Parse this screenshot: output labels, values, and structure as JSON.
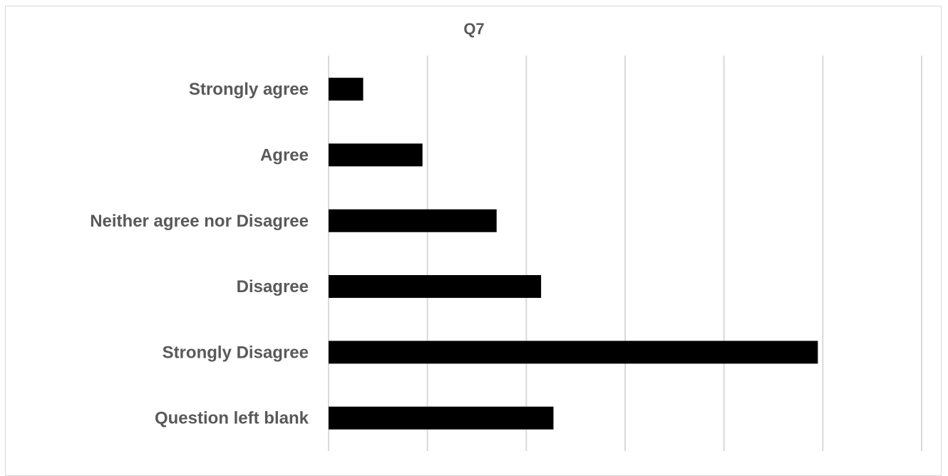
{
  "chart_data": {
    "type": "bar",
    "orientation": "horizontal",
    "title": "Q7",
    "categories": [
      "Strongly agree",
      "Agree",
      "Neither agree nor Disagree",
      "Disagree",
      "Strongly Disagree",
      "Question left blank"
    ],
    "values": [
      0.7,
      1.9,
      3.4,
      4.3,
      9.9,
      4.55
    ],
    "xlim": [
      0,
      12
    ],
    "grid": true,
    "legend": "none",
    "colors": {
      "bar": "#000000",
      "grid": "#d9d9d9",
      "text": "#595959"
    }
  }
}
